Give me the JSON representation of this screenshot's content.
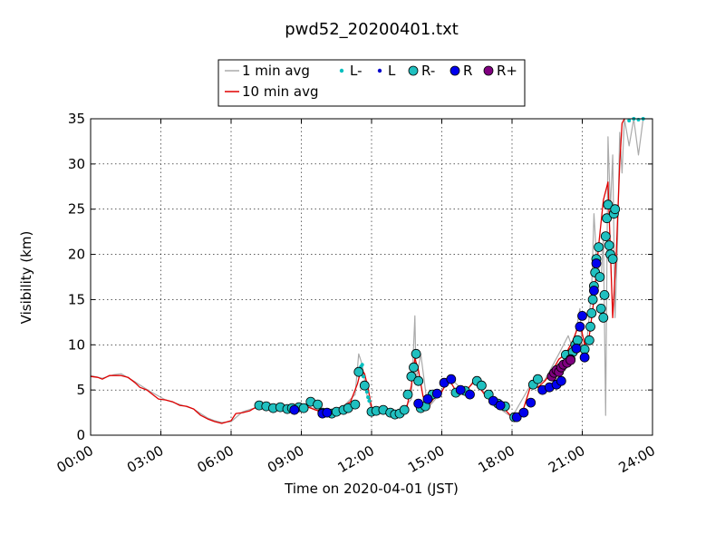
{
  "chart_data": {
    "type": "line",
    "title": "pwd52_20200401.txt",
    "xlabel": "Time on 2020-04-01 (JST)",
    "ylabel": "Visibility (km)",
    "xlim_hours": [
      0,
      24
    ],
    "ylim": [
      0,
      35
    ],
    "xticks": [
      "00:00",
      "03:00",
      "06:00",
      "09:00",
      "12:00",
      "15:00",
      "18:00",
      "21:00",
      "24:00"
    ],
    "yticks": [
      0,
      5,
      10,
      15,
      20,
      25,
      30,
      35
    ],
    "grid": true,
    "legend_position": "top-center",
    "legend": [
      {
        "label": "1 min avg",
        "kind": "line",
        "color": "#aaaaaa"
      },
      {
        "label": "L-",
        "kind": "dot-small",
        "color": "#00bfbf"
      },
      {
        "label": "L",
        "kind": "dot-small",
        "color": "#0000cc"
      },
      {
        "label": "R-",
        "kind": "circle",
        "color": "#20c0c0"
      },
      {
        "label": "R",
        "kind": "circle",
        "color": "#0000ee"
      },
      {
        "label": "R+",
        "kind": "circle",
        "color": "#800080"
      },
      {
        "label": "10 min avg",
        "kind": "line",
        "color": "#e00000"
      }
    ],
    "series": [
      {
        "name": "10 min avg",
        "color": "#e00000",
        "x_hours": [
          0,
          0.3,
          0.5,
          0.8,
          1.0,
          1.3,
          1.6,
          1.9,
          2.1,
          2.4,
          2.6,
          2.9,
          3.2,
          3.5,
          3.8,
          4.1,
          4.4,
          4.7,
          5.0,
          5.3,
          5.6,
          6.0,
          6.2,
          6.5,
          6.8,
          7.0,
          7.3,
          7.6,
          8.0,
          8.4,
          8.8,
          9.2,
          9.6,
          10.0,
          10.4,
          10.8,
          11.1,
          11.4,
          11.55,
          11.7,
          11.85,
          12.0,
          12.4,
          12.8,
          13.2,
          13.5,
          13.7,
          13.85,
          14.0,
          14.2,
          14.4,
          14.7,
          15.0,
          15.3,
          15.6,
          16.0,
          16.4,
          16.8,
          17.2,
          17.6,
          18.0,
          18.2,
          18.5,
          18.8,
          19.1,
          19.4,
          19.7,
          20.0,
          20.3,
          20.6,
          20.9,
          21.1,
          21.3,
          21.5,
          21.7,
          21.9,
          22.1,
          22.3,
          22.45,
          22.6,
          22.7,
          22.8
        ],
        "values": [
          6.5,
          6.4,
          6.2,
          6.6,
          6.6,
          6.6,
          6.4,
          5.8,
          5.3,
          5.0,
          4.6,
          4.0,
          3.9,
          3.7,
          3.3,
          3.2,
          2.9,
          2.2,
          1.8,
          1.5,
          1.3,
          1.6,
          2.4,
          2.5,
          2.7,
          3.0,
          3.1,
          3.2,
          3.1,
          3.0,
          3.0,
          3.2,
          2.8,
          2.5,
          2.8,
          3.2,
          3.7,
          5.7,
          7.3,
          6.8,
          5.2,
          3.1,
          2.6,
          2.6,
          2.5,
          3.0,
          5.5,
          8.5,
          7.2,
          4.3,
          3.2,
          4.2,
          4.8,
          6.2,
          4.9,
          4.8,
          6.0,
          4.6,
          3.5,
          3.1,
          2.0,
          2.2,
          3.0,
          5.5,
          5.3,
          6.0,
          7.0,
          8.4,
          9.0,
          10.5,
          12.5,
          10.0,
          11.0,
          15.0,
          21.0,
          26.0,
          28.0,
          13.0,
          20.0,
          30.0,
          34.5,
          35.0
        ]
      },
      {
        "name": "1 min avg",
        "color": "#aaaaaa",
        "x_hours": [
          0,
          0.5,
          1.0,
          1.3,
          1.9,
          2.5,
          3.2,
          3.8,
          4.4,
          4.7,
          5.0,
          5.3,
          5.6,
          6.0,
          6.5,
          7.0,
          7.6,
          8.4,
          9.2,
          10.0,
          10.8,
          11.3,
          11.45,
          11.6,
          11.8,
          12.0,
          12.6,
          13.2,
          13.7,
          13.85,
          13.9,
          14.1,
          14.4,
          15.0,
          15.3,
          16.0,
          16.4,
          17.2,
          18.0,
          18.8,
          19.4,
          20.0,
          20.4,
          20.6,
          20.9,
          21.0,
          21.2,
          21.4,
          21.5,
          21.6,
          21.8,
          21.9,
          22.0,
          22.1,
          22.2,
          22.3,
          22.4,
          22.5,
          22.6,
          22.7,
          22.8,
          23.0,
          23.2,
          23.4,
          23.6,
          24.0
        ],
        "values": [
          6.6,
          6.3,
          6.7,
          6.8,
          5.9,
          4.9,
          3.9,
          3.4,
          2.9,
          2.4,
          1.9,
          1.6,
          1.4,
          1.5,
          2.6,
          3.0,
          3.3,
          3.0,
          3.3,
          2.4,
          3.2,
          4.5,
          9.0,
          7.8,
          4.5,
          2.9,
          2.6,
          2.4,
          4.0,
          13.2,
          6.0,
          9.0,
          3.0,
          4.8,
          6.5,
          4.7,
          6.2,
          3.4,
          2.0,
          5.6,
          6.1,
          9.0,
          11.0,
          9.5,
          14.0,
          9.0,
          10.5,
          16.0,
          24.5,
          20.0,
          17.0,
          22.0,
          2.2,
          33.0,
          25.0,
          31.0,
          13.0,
          21.0,
          33.5,
          29.0,
          35.0,
          32.0,
          35.0,
          31.0,
          35.0,
          35.0
        ]
      },
      {
        "name": "L-",
        "color": "#00bfbf",
        "x_hours": [
          11.5,
          11.55,
          11.6,
          11.65,
          11.75,
          11.8,
          11.85,
          11.9,
          23.0,
          23.2,
          23.4,
          23.6
        ],
        "values": [
          7.4,
          7.6,
          7.8,
          6.5,
          5.2,
          4.8,
          4.2,
          3.8,
          34.8,
          35.0,
          34.9,
          35.0
        ]
      },
      {
        "name": "L",
        "color": "#0000cc",
        "x_hours": [],
        "values": []
      },
      {
        "name": "R-",
        "color": "#20c0c0",
        "x_hours": [
          7.2,
          7.5,
          7.8,
          8.1,
          8.4,
          8.6,
          8.9,
          9.1,
          9.4,
          9.7,
          9.9,
          10.3,
          10.5,
          10.8,
          11.0,
          11.3,
          11.45,
          11.7,
          12.0,
          12.2,
          12.5,
          12.8,
          13.0,
          13.2,
          13.4,
          13.55,
          13.7,
          13.8,
          13.9,
          14.0,
          14.1,
          14.3,
          14.6,
          15.6,
          16.0,
          16.5,
          16.7,
          17.0,
          17.4,
          17.7,
          18.1,
          18.9,
          19.1,
          20.3,
          20.6,
          20.7,
          20.8,
          21.1,
          21.3,
          21.35,
          21.4,
          21.45,
          21.5,
          21.55,
          21.6,
          21.7,
          21.75,
          21.8,
          21.9,
          21.95,
          22.0,
          22.05,
          22.1,
          22.15,
          22.2,
          22.3,
          22.35,
          22.4
        ],
        "values": [
          3.3,
          3.2,
          3.0,
          3.1,
          2.9,
          3.0,
          3.1,
          3.0,
          3.7,
          3.4,
          2.5,
          2.4,
          2.6,
          2.8,
          3.0,
          3.4,
          7.0,
          5.5,
          2.6,
          2.7,
          2.8,
          2.5,
          2.3,
          2.4,
          2.8,
          4.5,
          6.5,
          7.5,
          9.0,
          6.0,
          3.0,
          3.2,
          4.5,
          4.7,
          4.9,
          6.0,
          5.5,
          4.5,
          3.5,
          3.2,
          2.0,
          5.6,
          6.2,
          8.9,
          9.2,
          10.0,
          10.5,
          9.5,
          10.5,
          12.0,
          13.5,
          15.0,
          16.5,
          18.0,
          19.5,
          20.8,
          17.5,
          14.0,
          13.0,
          15.5,
          22.0,
          24.0,
          25.5,
          21.0,
          20.0,
          19.5,
          24.5,
          25.0
        ]
      },
      {
        "name": "R",
        "color": "#0000ee",
        "x_hours": [
          8.7,
          9.9,
          10.1,
          14.0,
          14.4,
          14.8,
          15.1,
          15.4,
          15.8,
          16.2,
          17.2,
          17.5,
          18.2,
          18.5,
          18.8,
          19.3,
          19.6,
          19.9,
          20.1,
          20.5,
          20.75,
          20.9,
          21.0,
          21.1,
          21.5,
          21.6
        ],
        "values": [
          2.8,
          2.4,
          2.5,
          3.5,
          4.0,
          4.6,
          5.8,
          6.2,
          5.0,
          4.5,
          3.8,
          3.3,
          2.0,
          2.5,
          3.6,
          5.0,
          5.3,
          5.6,
          6.0,
          8.4,
          9.6,
          12.0,
          13.2,
          8.6,
          16.0,
          19.0
        ]
      },
      {
        "name": "R+",
        "color": "#800080",
        "x_hours": [
          19.7,
          19.8,
          19.9,
          20.0,
          20.1,
          20.2,
          20.35,
          20.5
        ],
        "values": [
          6.5,
          6.9,
          7.2,
          7.0,
          7.5,
          7.8,
          8.0,
          8.3
        ]
      }
    ]
  }
}
